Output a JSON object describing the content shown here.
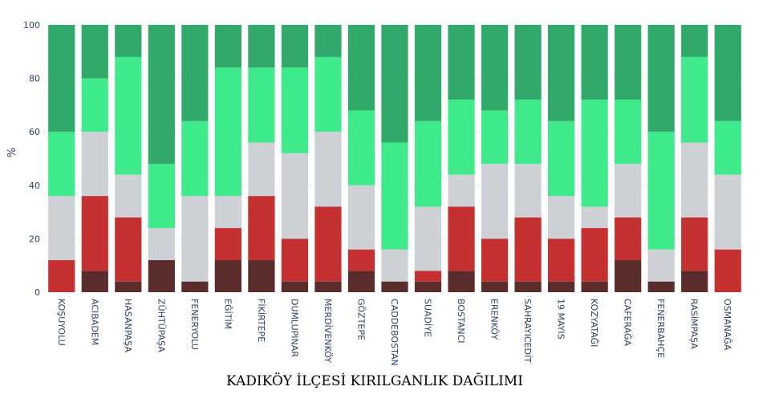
{
  "chart_data": {
    "type": "bar",
    "stacked": true,
    "xlabel": "KADIKÖY İLÇESİ KIRILGANLIK DAĞILIMI",
    "ylabel": "%",
    "ylim": [
      0,
      100
    ],
    "yticks": [
      0,
      20,
      40,
      60,
      80,
      100
    ],
    "grid": true,
    "legend": "none",
    "categories": [
      "KOŞUYOLU",
      "ACIBADEM",
      "HASANPAŞA",
      "ZÜHTÜPAŞA",
      "FENERYOLU",
      "EĞİTİM",
      "FİKİRTEPE",
      "DUMLUPINAR",
      "MERDİVENKÖY",
      "GÖZTEPE",
      "CADDEBOSTAN",
      "SUADİYE",
      "BOSTANCI",
      "ERENKÖY",
      "SAHRAYICEDİT",
      "19 MAYIS",
      "KOZYATAĞI",
      "CAFERAĞA",
      "FENERBAHÇE",
      "RASİMPAŞA",
      "OSMANAĞA"
    ],
    "series": [
      {
        "color": "#5b2c2c",
        "values": [
          0,
          8,
          4,
          12,
          4,
          12,
          12,
          4,
          4,
          8,
          4,
          4,
          8,
          4,
          4,
          4,
          4,
          12,
          4,
          8,
          0
        ]
      },
      {
        "color": "#c53030",
        "values": [
          12,
          28,
          24,
          0,
          0,
          12,
          24,
          16,
          28,
          8,
          0,
          4,
          24,
          16,
          24,
          16,
          20,
          16,
          0,
          20,
          16
        ]
      },
      {
        "color": "#cdd1d6",
        "values": [
          24,
          24,
          16,
          12,
          32,
          12,
          20,
          32,
          28,
          24,
          12,
          24,
          12,
          28,
          20,
          16,
          8,
          20,
          12,
          28,
          28
        ]
      },
      {
        "color": "#3eea8a",
        "values": [
          24,
          20,
          44,
          24,
          28,
          48,
          28,
          32,
          28,
          28,
          40,
          32,
          28,
          20,
          24,
          28,
          40,
          24,
          44,
          32,
          20
        ]
      },
      {
        "color": "#31a96b",
        "values": [
          40,
          20,
          12,
          52,
          36,
          16,
          16,
          16,
          12,
          32,
          44,
          36,
          28,
          32,
          28,
          36,
          28,
          28,
          40,
          12,
          36
        ]
      }
    ]
  }
}
